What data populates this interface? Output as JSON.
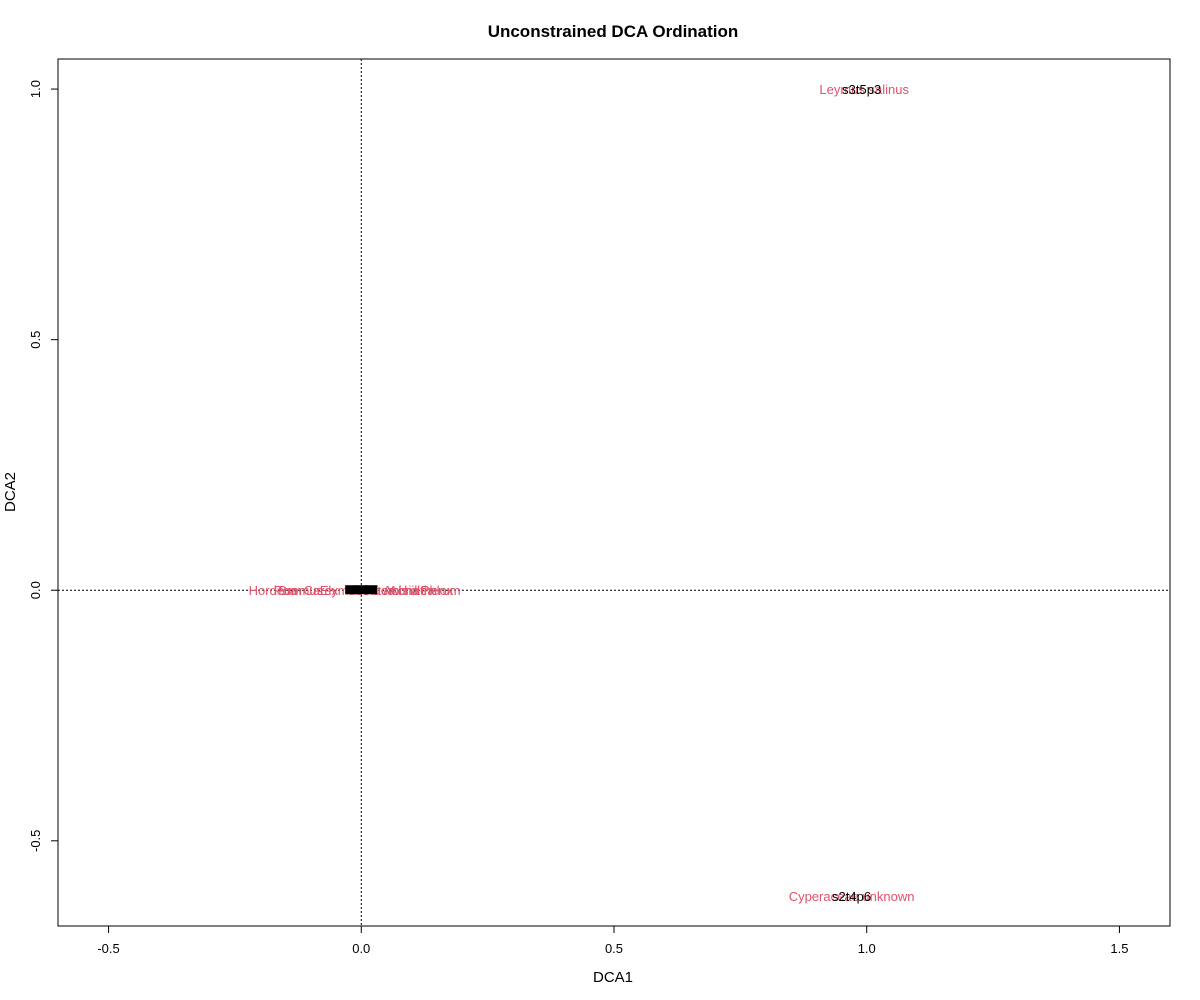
{
  "chart_data": {
    "type": "scatter",
    "title": "Unconstrained DCA Ordination",
    "xlabel": "DCA1",
    "ylabel": "DCA2",
    "xlim": [
      -0.6,
      1.6
    ],
    "ylim": [
      -0.67,
      1.06
    ],
    "x_ticks": [
      -0.5,
      0.0,
      0.5,
      1.0,
      1.5
    ],
    "x_tick_labels": [
      "-0.5",
      "0.0",
      "0.5",
      "1.0",
      "1.5"
    ],
    "y_ticks": [
      -0.5,
      0.0,
      0.5,
      1.0
    ],
    "y_tick_labels": [
      "-0.5",
      "0.0",
      "0.5",
      "1.0"
    ],
    "reference_lines": {
      "x": 0,
      "y": 0,
      "style": "dotted"
    },
    "grid": false,
    "colors": {
      "sites": "#000000",
      "species": "#DF536B",
      "axes": "#000000"
    },
    "series": [
      {
        "points": [
          {
            "label": "s3t5p3",
            "x": 0.99,
            "y": 1.0
          },
          {
            "label": "s2t4p6",
            "x": 0.97,
            "y": -0.61
          },
          {
            "label": "",
            "x": -0.02,
            "y": 0.0
          },
          {
            "label": "",
            "x": 0.0,
            "y": 0.0
          },
          {
            "label": "",
            "x": 0.02,
            "y": 0.0
          }
        ]
      },
      {
        "points": [
          {
            "label": "Leymus salinus",
            "x": 0.995,
            "y": 1.0
          },
          {
            "label": "Cyperaceae unknown",
            "x": 0.97,
            "y": -0.61
          },
          {
            "label": "Hordeum",
            "x": -0.17,
            "y": 0.0
          },
          {
            "label": "Poa",
            "x": -0.15,
            "y": 0.0
          },
          {
            "label": "Bromus",
            "x": -0.12,
            "y": 0.0
          },
          {
            "label": "Carex",
            "x": -0.08,
            "y": 0.0
          },
          {
            "label": "Elymus",
            "x": -0.04,
            "y": 0.0
          },
          {
            "label": "Festuca",
            "x": 0.02,
            "y": 0.0
          },
          {
            "label": "Artemisia",
            "x": 0.06,
            "y": 0.0
          },
          {
            "label": "Achillea",
            "x": 0.1,
            "y": 0.0
          },
          {
            "label": "Achnatherum",
            "x": 0.12,
            "y": 0.0
          },
          {
            "label": "Phlox",
            "x": 0.15,
            "y": 0.0
          }
        ]
      }
    ]
  }
}
